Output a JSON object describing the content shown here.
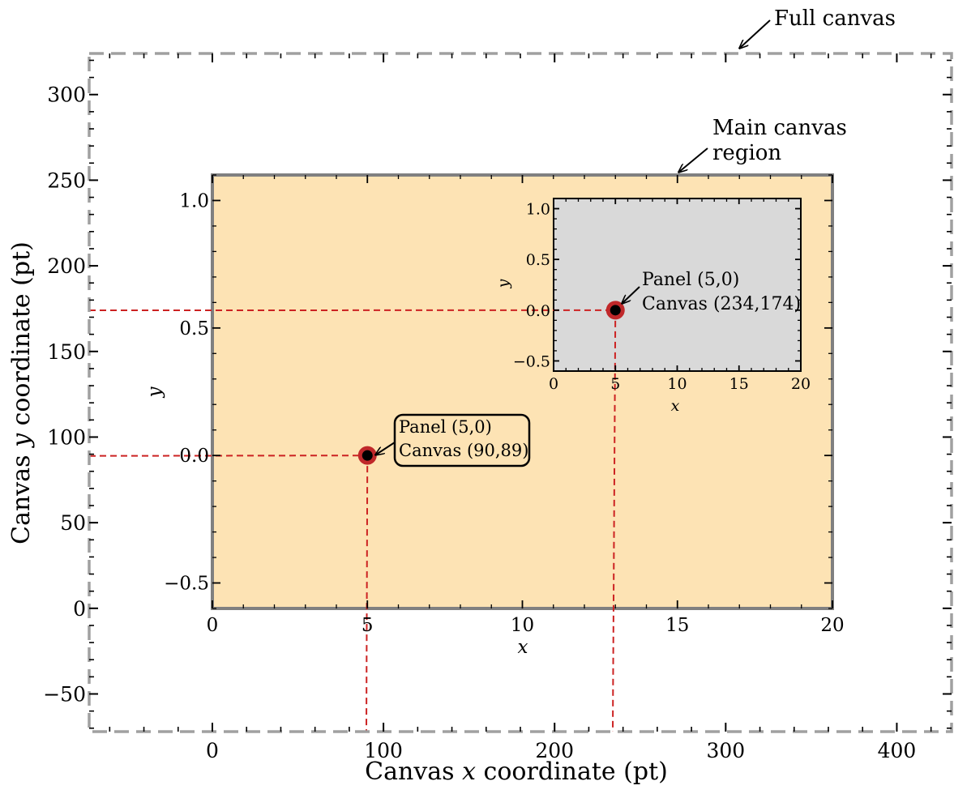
{
  "outer_axes": {
    "xlabel": {
      "pre": "Canvas ",
      "var": "x",
      "post": " coordinate  (pt)"
    },
    "ylabel": {
      "pre": "Canvas ",
      "var": "y",
      "post": " coordinate  (pt)"
    },
    "xlim": [
      -72,
      432
    ],
    "ylim": [
      -72,
      324
    ],
    "xticks": [
      0,
      100,
      200,
      300,
      400
    ],
    "xtick_labels": [
      "0",
      "100",
      "200",
      "300",
      "400"
    ],
    "yticks": [
      -50,
      0,
      50,
      100,
      150,
      200,
      250,
      300
    ],
    "ytick_labels": [
      "−50",
      "0",
      "50",
      "100",
      "150",
      "200",
      "250",
      "300"
    ],
    "full_canvas_label": "Full canvas",
    "main_region_label_line1": "Main canvas",
    "main_region_label_line2": "region"
  },
  "main_panel": {
    "xlabel": "x",
    "ylabel": "y",
    "xlim": [
      0,
      20
    ],
    "ylim": [
      -0.6,
      1.1
    ],
    "xticks": [
      0,
      5,
      10,
      15,
      20
    ],
    "xtick_labels": [
      "0",
      "5",
      "10",
      "15",
      "20"
    ],
    "yticks": [
      -0.5,
      0.0,
      0.5,
      1.0
    ],
    "ytick_labels": [
      "−0.5",
      "0.0",
      "0.5",
      "1.0"
    ],
    "background": "#fde3b4",
    "point": {
      "panel": [
        5,
        0
      ],
      "canvas": [
        90,
        89
      ]
    },
    "callout_line1": "Panel (5,0)",
    "callout_line2": "Canvas (90,89)"
  },
  "inset_panel": {
    "xlabel": "x",
    "ylabel": "y",
    "xlim": [
      0,
      20
    ],
    "ylim": [
      -0.6,
      1.1
    ],
    "xticks": [
      0,
      5,
      10,
      15,
      20
    ],
    "xtick_labels": [
      "0",
      "5",
      "10",
      "15",
      "20"
    ],
    "yticks": [
      -0.5,
      0.0,
      0.5,
      1.0
    ],
    "ytick_labels": [
      "−0.5",
      "0.0",
      "0.5",
      "1.0"
    ],
    "background": "#d9d9d9",
    "point": {
      "panel": [
        5,
        0
      ],
      "canvas": [
        234,
        174
      ]
    },
    "callout_line1": "Panel (5,0)",
    "callout_line2": "Canvas (234,174)"
  },
  "colors": {
    "guide": "#cc2222",
    "marker_ring": "#c0282a",
    "marker_fill": "#000000",
    "frame_gray": "#808080",
    "dash_gray": "#a0a0a0"
  }
}
